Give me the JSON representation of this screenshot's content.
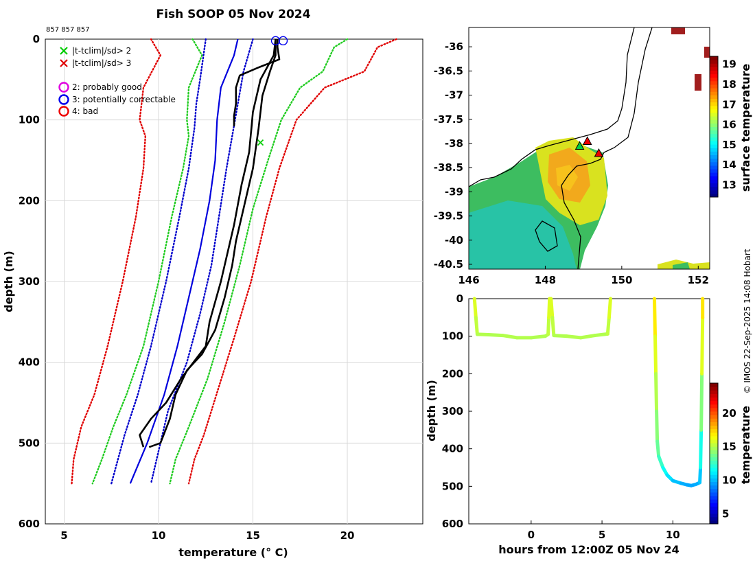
{
  "title": "Fish SOOP 05 Nov 2024",
  "instrument_ids": "857 857 857",
  "credit": "© IMOS 22-Sep-2025 14:08 Hobart",
  "chart_data": [
    {
      "type": "line",
      "name": "temperature-profiles",
      "xlabel": "temperature (° C)",
      "ylabel": "depth (m)",
      "xlim": [
        4,
        24
      ],
      "ylim": [
        0,
        600
      ],
      "y_reversed": true,
      "xticks": [
        5,
        10,
        15,
        20
      ],
      "yticks": [
        0,
        100,
        200,
        300,
        400,
        500,
        600
      ],
      "grid": true,
      "legend": [
        {
          "marker": "x",
          "color": "#00cc00",
          "label": "|t-tclim|/sd> 2"
        },
        {
          "marker": "x",
          "color": "#e00000",
          "label": "|t-tclim|/sd> 3"
        },
        {
          "marker": "o",
          "color": "#e000e0",
          "label": "2: probably good"
        },
        {
          "marker": "o",
          "color": "#0000ee",
          "label": "3: potentially correctable"
        },
        {
          "marker": "o",
          "color": "#ee0000",
          "label": "4: bad"
        }
      ],
      "clim_series": [
        {
          "name": "clim -3sd",
          "color": "#e00000",
          "style": "dotted",
          "points": [
            [
              9.6,
              0
            ],
            [
              10.1,
              20
            ],
            [
              9.2,
              60
            ],
            [
              9.0,
              100
            ],
            [
              9.3,
              120
            ],
            [
              9.2,
              160
            ],
            [
              8.8,
              220
            ],
            [
              8.1,
              300
            ],
            [
              7.3,
              380
            ],
            [
              6.6,
              440
            ],
            [
              5.9,
              480
            ],
            [
              5.5,
              520
            ],
            [
              5.4,
              550
            ]
          ]
        },
        {
          "name": "clim -2sd",
          "color": "#22cc22",
          "style": "dotted",
          "points": [
            [
              11.8,
              0
            ],
            [
              12.3,
              20
            ],
            [
              11.6,
              60
            ],
            [
              11.5,
              100
            ],
            [
              11.6,
              120
            ],
            [
              11.3,
              160
            ],
            [
              10.7,
              220
            ],
            [
              10.0,
              300
            ],
            [
              9.2,
              380
            ],
            [
              8.3,
              440
            ],
            [
              7.6,
              480
            ],
            [
              7.0,
              520
            ],
            [
              6.5,
              550
            ]
          ]
        },
        {
          "name": "clim -1sd",
          "color": "#0000cc",
          "style": "dotted",
          "points": [
            [
              12.5,
              0
            ],
            [
              12.2,
              50
            ],
            [
              12.0,
              80
            ],
            [
              11.9,
              110
            ],
            [
              11.6,
              160
            ],
            [
              11.1,
              220
            ],
            [
              10.4,
              300
            ],
            [
              9.6,
              380
            ],
            [
              8.9,
              440
            ],
            [
              8.2,
              490
            ],
            [
              7.5,
              550
            ]
          ]
        },
        {
          "name": "clim mean",
          "color": "#0000dd",
          "style": "solid",
          "points": [
            [
              14.2,
              0
            ],
            [
              14.0,
              20
            ],
            [
              13.3,
              60
            ],
            [
              13.1,
              100
            ],
            [
              13.0,
              150
            ],
            [
              12.7,
              200
            ],
            [
              12.2,
              260
            ],
            [
              11.6,
              320
            ],
            [
              11.0,
              380
            ],
            [
              10.3,
              440
            ],
            [
              9.4,
              500
            ],
            [
              8.5,
              550
            ]
          ]
        },
        {
          "name": "clim +1sd",
          "color": "#0000cc",
          "style": "dotted",
          "points": [
            [
              15.0,
              0
            ],
            [
              14.5,
              40
            ],
            [
              14.2,
              80
            ],
            [
              13.9,
              120
            ],
            [
              13.6,
              160
            ],
            [
              13.2,
              220
            ],
            [
              12.8,
              280
            ],
            [
              12.2,
              340
            ],
            [
              11.5,
              400
            ],
            [
              10.5,
              460
            ],
            [
              10.0,
              510
            ],
            [
              9.6,
              550
            ]
          ]
        },
        {
          "name": "clim +2sd",
          "color": "#22cc22",
          "style": "dotted",
          "points": [
            [
              20.0,
              0
            ],
            [
              19.3,
              10
            ],
            [
              18.7,
              40
            ],
            [
              17.5,
              60
            ],
            [
              16.5,
              100
            ],
            [
              15.8,
              150
            ],
            [
              15.0,
              210
            ],
            [
              14.3,
              280
            ],
            [
              13.5,
              350
            ],
            [
              12.6,
              420
            ],
            [
              11.6,
              480
            ],
            [
              10.9,
              520
            ],
            [
              10.6,
              550
            ]
          ]
        },
        {
          "name": "clim +3sd",
          "color": "#e00000",
          "style": "dotted",
          "points": [
            [
              22.6,
              0
            ],
            [
              21.6,
              10
            ],
            [
              20.9,
              40
            ],
            [
              18.8,
              60
            ],
            [
              17.3,
              100
            ],
            [
              16.4,
              160
            ],
            [
              15.7,
              220
            ],
            [
              14.9,
              300
            ],
            [
              14.0,
              370
            ],
            [
              13.2,
              430
            ],
            [
              12.4,
              490
            ],
            [
              11.9,
              520
            ],
            [
              11.6,
              550
            ]
          ]
        }
      ],
      "profiles": [
        {
          "name": "profile 1",
          "color": "#000000",
          "points": [
            [
              16.3,
              0
            ],
            [
              16.3,
              10
            ],
            [
              16.4,
              25
            ],
            [
              15.3,
              35
            ],
            [
              14.3,
              45
            ],
            [
              14.1,
              60
            ],
            [
              14.1,
              80
            ],
            [
              14.0,
              95
            ],
            [
              14.0,
              108
            ]
          ]
        },
        {
          "name": "profile 2",
          "color": "#000000",
          "points": [
            [
              16.2,
              0
            ],
            [
              16.2,
              20
            ],
            [
              15.9,
              40
            ],
            [
              15.5,
              70
            ],
            [
              15.3,
              110
            ],
            [
              15.0,
              160
            ],
            [
              14.6,
              200
            ],
            [
              14.1,
              250
            ],
            [
              13.9,
              280
            ],
            [
              13.5,
              320
            ],
            [
              13.0,
              360
            ],
            [
              12.3,
              390
            ],
            [
              11.5,
              410
            ],
            [
              10.9,
              440
            ],
            [
              10.6,
              470
            ],
            [
              10.1,
              500
            ],
            [
              9.5,
              505
            ]
          ]
        },
        {
          "name": "profile 3",
          "color": "#000000",
          "points": [
            [
              16.2,
              0
            ],
            [
              16.1,
              20
            ],
            [
              15.4,
              50
            ],
            [
              15.0,
              90
            ],
            [
              14.8,
              140
            ],
            [
              14.4,
              180
            ],
            [
              14.0,
              230
            ],
            [
              13.6,
              270
            ],
            [
              13.3,
              300
            ],
            [
              12.7,
              350
            ],
            [
              12.5,
              380
            ],
            [
              11.2,
              420
            ],
            [
              10.4,
              450
            ],
            [
              9.6,
              470
            ],
            [
              9.0,
              490
            ],
            [
              9.2,
              505
            ]
          ]
        }
      ],
      "flags": [
        {
          "type": "circle",
          "color": "#0000ee",
          "x": 16.2,
          "y": 2
        },
        {
          "type": "circle",
          "color": "#0000ee",
          "x": 16.6,
          "y": 2
        },
        {
          "type": "x",
          "color": "#00cc00",
          "x": 15.4,
          "y": 128
        }
      ]
    },
    {
      "type": "heatmap",
      "name": "sst-map",
      "xlim": [
        146,
        152.3
      ],
      "ylim": [
        -40.6,
        -35.6
      ],
      "xticks": [
        146,
        148,
        150,
        152
      ],
      "yticks": [
        -36,
        -36.5,
        -37,
        -37.5,
        -38,
        -38.5,
        -39,
        -39.5,
        -40,
        -40.5
      ],
      "colorbar_label": "surface temperature",
      "colorbar_ticks": [
        13,
        14,
        15,
        16,
        17,
        18,
        19
      ],
      "colorbar_range": [
        12.4,
        19.4
      ],
      "markers": [
        {
          "lon": 148.9,
          "lat": -38.05,
          "color": "#00cc44",
          "shape": "triangle"
        },
        {
          "lon": 149.1,
          "lat": -37.95,
          "color": "#ee0000",
          "shape": "triangle"
        },
        {
          "lon": 149.4,
          "lat": -38.2,
          "color": "#ee0000",
          "shape": "triangle"
        }
      ]
    },
    {
      "type": "scatter",
      "name": "depth-time",
      "xlabel": "hours from 12:00Z 05 Nov 24",
      "ylabel": "depth (m)",
      "xlim": [
        -4.4,
        12.6
      ],
      "ylim": [
        0,
        600
      ],
      "y_reversed": true,
      "xticks": [
        0,
        5,
        10
      ],
      "yticks": [
        0,
        100,
        200,
        300,
        400,
        500,
        600
      ],
      "colorbar_label": "temperature",
      "colorbar_ticks": [
        5,
        10,
        15,
        20
      ],
      "colorbar_range": [
        3.5,
        24.5
      ],
      "tracks": [
        {
          "name": "tow 1",
          "points": [
            [
              -4.0,
              0,
              16.2
            ],
            [
              -3.9,
              50,
              15.6
            ],
            [
              -3.8,
              95,
              15.1
            ],
            [
              -3.0,
              96,
              15.0
            ],
            [
              -2.0,
              98,
              15.0
            ],
            [
              -1.0,
              104,
              15.1
            ],
            [
              0,
              104,
              15.0
            ],
            [
              1.0,
              100,
              15.0
            ],
            [
              1.2,
              95,
              15.0
            ],
            [
              1.25,
              50,
              15.6
            ],
            [
              1.3,
              0,
              16.2
            ]
          ]
        },
        {
          "name": "tow 2",
          "points": [
            [
              1.4,
              0,
              16.2
            ],
            [
              1.5,
              50,
              15.6
            ],
            [
              1.6,
              98,
              15.0
            ],
            [
              2.5,
              100,
              15.0
            ],
            [
              3.5,
              104,
              15.1
            ],
            [
              4.5,
              98,
              15.0
            ],
            [
              5.4,
              94,
              15.0
            ],
            [
              5.5,
              50,
              15.6
            ],
            [
              5.6,
              0,
              16.2
            ]
          ]
        },
        {
          "name": "tow 3",
          "points": [
            [
              8.7,
              0,
              17.5
            ],
            [
              8.75,
              100,
              16.5
            ],
            [
              8.8,
              200,
              15.5
            ],
            [
              8.85,
              300,
              14.6
            ],
            [
              8.9,
              380,
              13.8
            ],
            [
              9.0,
              420,
              13.2
            ],
            [
              9.3,
              450,
              12.0
            ],
            [
              9.6,
              470,
              11.2
            ],
            [
              10.0,
              485,
              10.4
            ],
            [
              10.6,
              492,
              9.8
            ],
            [
              11.0,
              496,
              9.6
            ],
            [
              11.3,
              498,
              9.5
            ],
            [
              11.6,
              495,
              9.6
            ],
            [
              11.9,
              490,
              9.8
            ],
            [
              11.95,
              450,
              10.6
            ],
            [
              12.0,
              350,
              13.0
            ],
            [
              12.05,
              200,
              15.2
            ],
            [
              12.1,
              50,
              16.8
            ],
            [
              12.1,
              0,
              17.5
            ]
          ]
        }
      ]
    }
  ]
}
